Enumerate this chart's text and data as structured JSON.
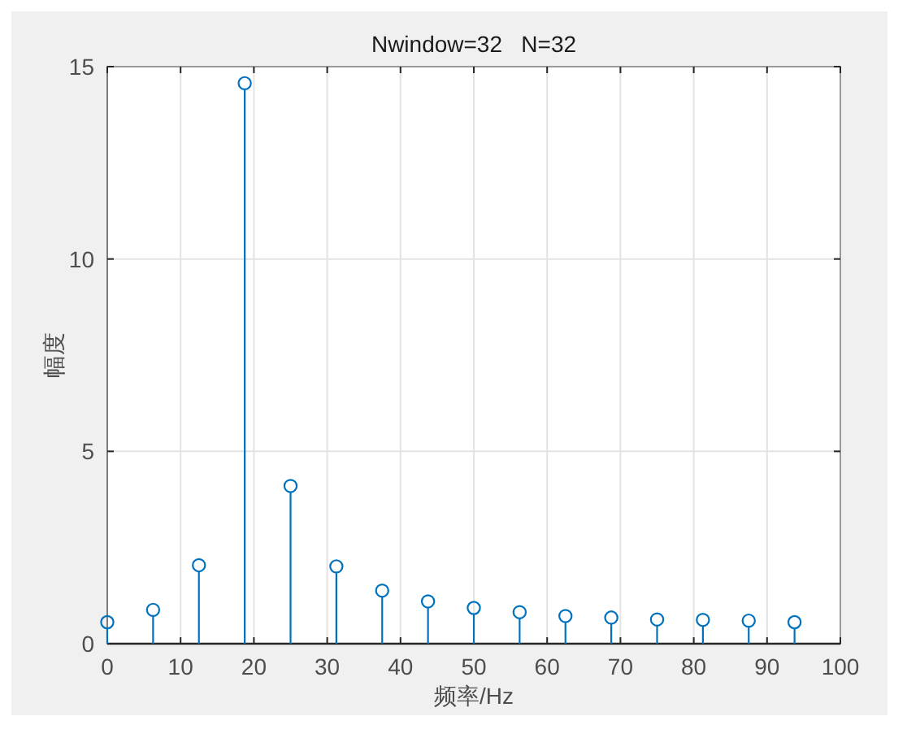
{
  "chart_data": {
    "type": "lollipop",
    "title": "Nwindow=32   N=32",
    "xlabel": "频率/Hz",
    "ylabel": "幅度",
    "x": [
      0,
      6.25,
      12.5,
      18.75,
      25,
      31.25,
      37.5,
      43.75,
      50,
      56.25,
      62.5,
      68.75,
      75,
      81.25,
      87.5,
      93.75
    ],
    "values": [
      0.56,
      0.88,
      2.04,
      14.57,
      4.1,
      2.01,
      1.38,
      1.1,
      0.93,
      0.82,
      0.72,
      0.68,
      0.63,
      0.62,
      0.6,
      0.56
    ],
    "color": "#0072bd",
    "marker": "circle",
    "grid": true,
    "xlim": [
      0,
      100
    ],
    "xticks": [
      0,
      10,
      20,
      30,
      40,
      50,
      60,
      70,
      80,
      90,
      100
    ],
    "ylim": [
      0,
      15
    ],
    "yticks": [
      0,
      5,
      10,
      15
    ]
  }
}
